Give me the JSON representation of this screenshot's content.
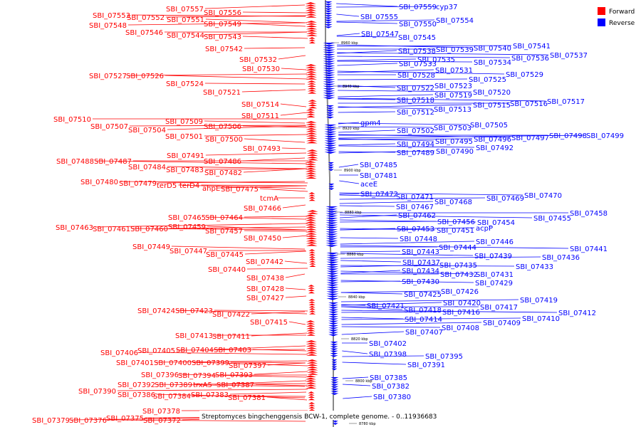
{
  "title": "Streptomyces bingchenggensis BCW-1, complete genome. - 0..11936683",
  "legend": [
    {
      "label": "Forward",
      "color": "#ff0000"
    },
    {
      "label": "Reverse",
      "color": "#0000ff"
    }
  ],
  "colors": {
    "forward": "#ff0000",
    "reverse": "#0000ff",
    "backbone": "#888888"
  },
  "ticks": [
    "8960 kbp",
    "8940 kbp",
    "8920 kbp",
    "8900 kbp",
    "8880 kbp",
    "8860 kbp",
    "8840 kbp",
    "8820 kbp",
    "8800 kbp",
    "8780 kbp"
  ],
  "forward_labels": [
    "SBI_07557",
    "SBI_07553",
    "SBI_07552",
    "SBI_07551",
    "SBI_07556",
    "SBI_07548",
    "SBI_07549",
    "SBI_07546",
    "SBI_07544",
    "SBI_07543",
    "SBI_07542",
    "SBI_07532",
    "SBI_07530",
    "SBI_07527",
    "SBI_07526",
    "SBI_07524",
    "SBI_07521",
    "SBI_07514",
    "SBI_07510",
    "SBI_07511",
    "SBI_07509",
    "SBI_07507",
    "SBI_07504",
    "SBI_07506",
    "SBI_07501",
    "SBI_07500",
    "SBI_07493",
    "SBI_07491",
    "SBI_07488",
    "SBI_07487",
    "SBI_07486",
    "SBI_07484",
    "SBI_07483",
    "SBI_07482",
    "SBI_07480",
    "SBI_07479",
    "terD5",
    "terD4",
    "ahpE",
    "SBI_07475",
    "tcmA",
    "SBI_07466",
    "SBI_07465",
    "SBI_07464",
    "SBI_07463",
    "SBI_07461",
    "SBI_07460",
    "SBI_07459",
    "SBI_07457",
    "SBI_07450",
    "SBI_07449",
    "SBI_07447",
    "SBI_07445",
    "SBI_07442",
    "SBI_07440",
    "SBI_07438",
    "SBI_07428",
    "SBI_07427",
    "SBI_07424",
    "SBI_07423",
    "SBI_07422",
    "SBI_07415",
    "SBI_07413",
    "SBI_07411",
    "SBI_07406",
    "SBI_07405",
    "SBI_07404",
    "SBI_07403",
    "SBI_07401",
    "SBI_07400",
    "SBI_07399",
    "SBI_07397",
    "SBI_07396",
    "SBI_07394",
    "SBI_07393",
    "SBI_07392",
    "SBI_07389",
    "trxA5",
    "SBI_07387",
    "SBI_07390",
    "SBI_07386",
    "SBI_07384",
    "SBI_07383",
    "SBI_07381",
    "SBI_07378",
    "SBI_07379",
    "SBI_07376",
    "SBI_07375",
    "SBI_07372"
  ],
  "reverse_labels": [
    "SBI_07559",
    "cyp37",
    "SBI_07555",
    "SBI_07554",
    "SBI_07550",
    "SBI_07547",
    "SBI_07545",
    "SBI_07538",
    "SBI_07539",
    "SBI_07540",
    "SBI_07541",
    "SBI_07537",
    "SBI_07535",
    "SBI_07536",
    "SBI_07533",
    "SBI_07534",
    "SBI_07531",
    "SBI_07528",
    "SBI_07529",
    "SBI_07525",
    "SBI_07522",
    "SBI_07523",
    "SBI_07520",
    "SBI_07519",
    "SBI_07518",
    "SBI_07515",
    "SBI_07516",
    "SBI_07517",
    "SBI_07512",
    "SBI_07513",
    "gpm4",
    "SBI_07505",
    "SBI_07502",
    "SBI_07503",
    "SBI_07499",
    "SBI_07498",
    "SBI_07497",
    "SBI_07496",
    "SBI_07495",
    "SBI_07494",
    "SBI_07492",
    "SBI_07490",
    "SBI_07489",
    "SBI_07485",
    "SBI_07481",
    "aceE",
    "SBI_07472",
    "SBI_07470",
    "SBI_07469",
    "SBI_07471",
    "SBI_07468",
    "SBI_07467",
    "SBI_07462",
    "SBI_07458",
    "SBI_07455",
    "SBI_07456",
    "SBI_07454",
    "SBI_07453",
    "SBI_07451",
    "acpP",
    "SBI_07448",
    "SBI_07446",
    "SBI_07444",
    "SBI_07441",
    "SBI_07443",
    "SBI_07439",
    "SBI_07436",
    "SBI_07437",
    "SBI_07435",
    "SBI_07433",
    "SBI_07434",
    "SBI_07432",
    "SBI_07431",
    "SBI_07430",
    "SBI_07429",
    "SBI_07426",
    "SBI_07425",
    "SBI_07419",
    "SBI_07421",
    "SBI_07420",
    "SBI_07417",
    "SBI_07418",
    "SBI_07416",
    "SBI_07412",
    "SBI_07410",
    "SBI_07414",
    "SBI_07409",
    "SBI_07408",
    "SBI_07407",
    "SBI_07402",
    "SBI_07398",
    "SBI_07395",
    "SBI_07391",
    "SBI_07385",
    "SBI_07382",
    "SBI_07380"
  ]
}
